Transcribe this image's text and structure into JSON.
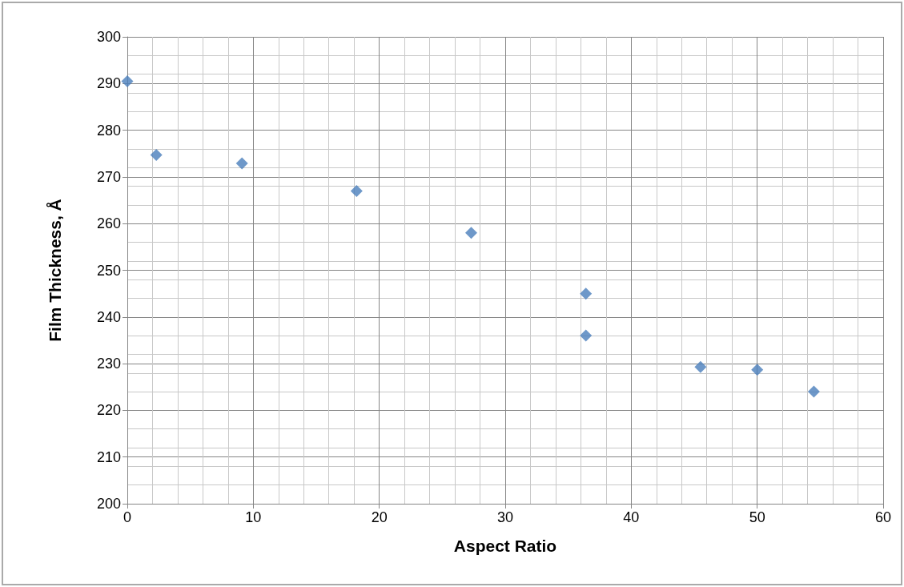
{
  "chart_data": {
    "type": "scatter",
    "xlabel": "Aspect Ratio",
    "ylabel": "Film Thickness, Å",
    "x": [
      0,
      2.3,
      9.1,
      18.2,
      27.3,
      36.4,
      36.4,
      45.5,
      50,
      54.5
    ],
    "values": [
      290.5,
      274.7,
      272.9,
      267,
      258,
      245,
      236,
      229.3,
      228.7,
      224
    ],
    "color": "#4a7ebb",
    "marker": "diamond",
    "xlim": [
      0,
      60
    ],
    "xticks": [
      0,
      10,
      20,
      30,
      40,
      50,
      60
    ],
    "ylim": [
      200,
      300
    ],
    "yticks": [
      200,
      210,
      220,
      230,
      240,
      250,
      260,
      270,
      280,
      290,
      300
    ],
    "grid": true
  }
}
